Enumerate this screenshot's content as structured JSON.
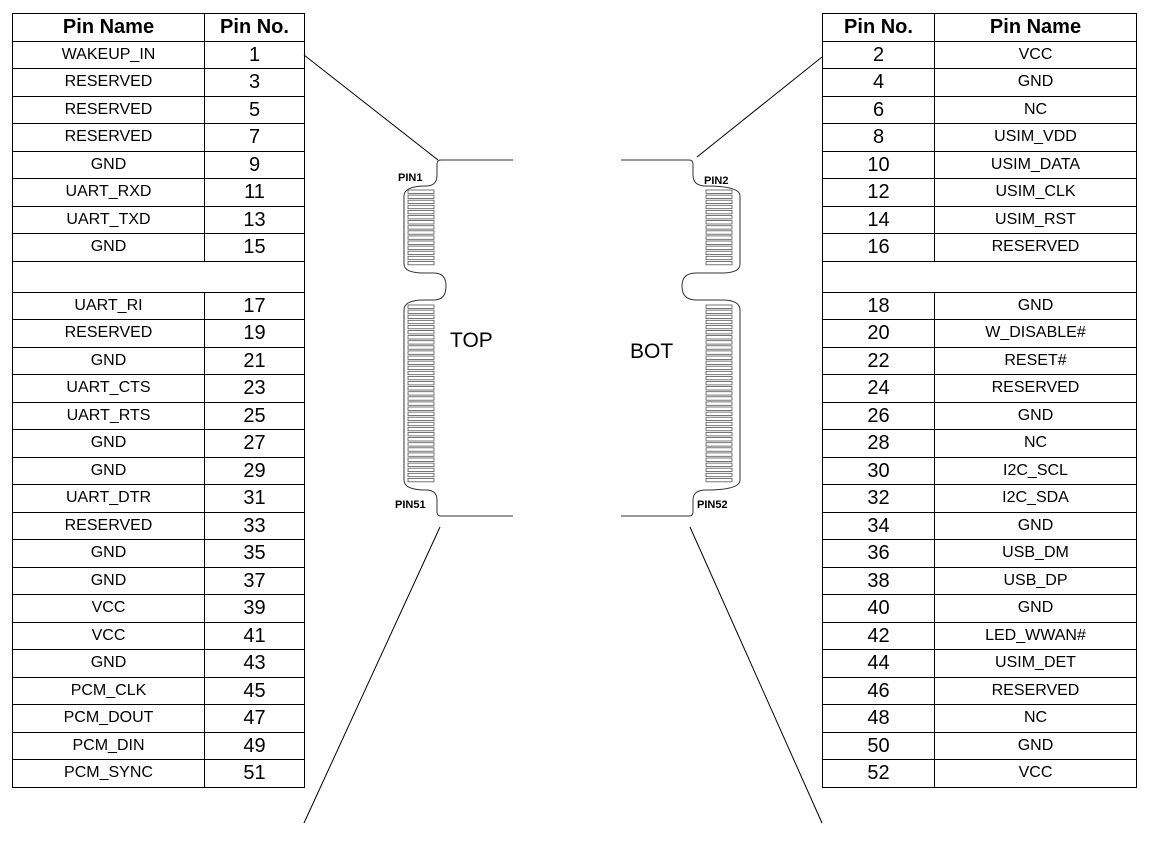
{
  "left_table": {
    "header_name": "Pin Name",
    "header_no": "Pin No.",
    "rows_top": [
      {
        "name": "WAKEUP_IN",
        "no": "1"
      },
      {
        "name": "RESERVED",
        "no": "3"
      },
      {
        "name": "RESERVED",
        "no": "5"
      },
      {
        "name": "RESERVED",
        "no": "7"
      },
      {
        "name": "GND",
        "no": "9"
      },
      {
        "name": "UART_RXD",
        "no": "11"
      },
      {
        "name": "UART_TXD",
        "no": "13"
      },
      {
        "name": "GND",
        "no": "15"
      }
    ],
    "rows_bottom": [
      {
        "name": "UART_RI",
        "no": "17"
      },
      {
        "name": "RESERVED",
        "no": "19"
      },
      {
        "name": "GND",
        "no": "21"
      },
      {
        "name": "UART_CTS",
        "no": "23"
      },
      {
        "name": "UART_RTS",
        "no": "25"
      },
      {
        "name": "GND",
        "no": "27"
      },
      {
        "name": "GND",
        "no": "29"
      },
      {
        "name": "UART_DTR",
        "no": "31"
      },
      {
        "name": "RESERVED",
        "no": "33"
      },
      {
        "name": "GND",
        "no": "35"
      },
      {
        "name": "GND",
        "no": "37"
      },
      {
        "name": "VCC",
        "no": "39"
      },
      {
        "name": "VCC",
        "no": "41"
      },
      {
        "name": "GND",
        "no": "43"
      },
      {
        "name": "PCM_CLK",
        "no": "45"
      },
      {
        "name": "PCM_DOUT",
        "no": "47"
      },
      {
        "name": "PCM_DIN",
        "no": "49"
      },
      {
        "name": "PCM_SYNC",
        "no": "51"
      }
    ]
  },
  "right_table": {
    "header_no": "Pin No.",
    "header_name": "Pin Name",
    "rows_top": [
      {
        "no": "2",
        "name": "VCC"
      },
      {
        "no": "4",
        "name": "GND"
      },
      {
        "no": "6",
        "name": "NC"
      },
      {
        "no": "8",
        "name": "USIM_VDD"
      },
      {
        "no": "10",
        "name": "USIM_DATA"
      },
      {
        "no": "12",
        "name": "USIM_CLK"
      },
      {
        "no": "14",
        "name": "USIM_RST"
      },
      {
        "no": "16",
        "name": "RESERVED"
      }
    ],
    "rows_bottom": [
      {
        "no": "18",
        "name": "GND"
      },
      {
        "no": "20",
        "name": "W_DISABLE#"
      },
      {
        "no": "22",
        "name": "RESET#"
      },
      {
        "no": "24",
        "name": "RESERVED"
      },
      {
        "no": "26",
        "name": "GND"
      },
      {
        "no": "28",
        "name": "NC"
      },
      {
        "no": "30",
        "name": "I2C_SCL"
      },
      {
        "no": "32",
        "name": "I2C_SDA"
      },
      {
        "no": "34",
        "name": "GND"
      },
      {
        "no": "36",
        "name": "USB_DM"
      },
      {
        "no": "38",
        "name": "USB_DP"
      },
      {
        "no": "40",
        "name": "GND"
      },
      {
        "no": "42",
        "name": "LED_WWAN#"
      },
      {
        "no": "44",
        "name": "USIM_DET"
      },
      {
        "no": "46",
        "name": "RESERVED"
      },
      {
        "no": "48",
        "name": "NC"
      },
      {
        "no": "50",
        "name": "GND"
      },
      {
        "no": "52",
        "name": "VCC"
      }
    ]
  },
  "connector": {
    "top_label": "TOP",
    "bot_label": "BOT",
    "pin1_label": "PIN1",
    "pin2_label": "PIN2",
    "pin51_label": "PIN51",
    "pin52_label": "PIN52"
  }
}
